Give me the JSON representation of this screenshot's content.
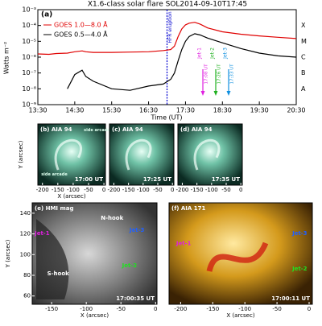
{
  "chart_data": {
    "type": "line",
    "title": "X1.6-class solar flare SOL2014-09-10T17:45",
    "panel_label": "(a)",
    "xlabel": "Time (UT)",
    "ylabel": "Watts m⁻²",
    "log_scale": true,
    "x": [
      13.5,
      13.8,
      14.0,
      14.3,
      14.5,
      14.7,
      14.8,
      15.0,
      15.5,
      16.0,
      16.5,
      16.9,
      17.1,
      17.2,
      17.3,
      17.4,
      17.5,
      17.6,
      17.75,
      17.9,
      18.1,
      18.5,
      19.0,
      19.5,
      20.0,
      20.5
    ],
    "series": [
      {
        "name": "GOES 1.0—8.0 Å",
        "color": "#e00000",
        "values": [
          1.6e-06,
          1.5e-06,
          1.7e-06,
          1.8e-06,
          2.2e-06,
          2.5e-06,
          2.2e-06,
          2e-06,
          2e-06,
          2.1e-06,
          2.2e-06,
          2.6e-06,
          3e-06,
          5e-06,
          2e-05,
          6e-05,
          0.00011,
          0.00014,
          0.00016,
          0.00012,
          7e-05,
          4e-05,
          2.8e-05,
          2.2e-05,
          1.8e-05,
          1.5e-05
        ]
      },
      {
        "name": "GOES 0.5—4.0 Å",
        "color": "#000000",
        "values": [
          null,
          null,
          null,
          1e-08,
          8e-08,
          1.5e-07,
          6e-08,
          3e-08,
          1e-08,
          8e-09,
          1.5e-08,
          2e-08,
          4e-08,
          1e-07,
          6e-07,
          3e-06,
          1e-05,
          2e-05,
          3e-05,
          2.5e-05,
          1.6e-05,
          8e-06,
          3.5e-06,
          1.8e-06,
          1.2e-06,
          1e-06
        ]
      }
    ],
    "xlim": [
      13.5,
      20.5
    ],
    "xticks": [
      {
        "value": 13.5,
        "label": "13:30"
      },
      {
        "value": 14.5,
        "label": "14:30"
      },
      {
        "value": 15.5,
        "label": "15:30"
      },
      {
        "value": 16.5,
        "label": "16:30"
      },
      {
        "value": 17.5,
        "label": "17:30"
      },
      {
        "value": 18.5,
        "label": "18:30"
      },
      {
        "value": 19.5,
        "label": "19:30"
      },
      {
        "value": 20.5,
        "label": "20:30"
      }
    ],
    "ylim": [
      1e-09,
      0.001
    ],
    "yticks": [
      {
        "value": 1e-09,
        "label": "10⁻⁹"
      },
      {
        "value": 1e-08,
        "label": "10⁻⁸"
      },
      {
        "value": 1e-07,
        "label": "10⁻⁷"
      },
      {
        "value": 1e-06,
        "label": "10⁻⁶"
      },
      {
        "value": 1e-05,
        "label": "10⁻⁵"
      },
      {
        "value": 0.0001,
        "label": "10⁻⁴"
      },
      {
        "value": 0.001,
        "label": "10⁻³"
      }
    ],
    "class_labels": [
      {
        "value": 0.0001,
        "label": "X"
      },
      {
        "value": 1e-05,
        "label": "M"
      },
      {
        "value": 1e-06,
        "label": "C"
      },
      {
        "value": 1e-07,
        "label": "B"
      },
      {
        "value": 1e-08,
        "label": "A"
      }
    ],
    "eruption": {
      "x": 17.0,
      "label": "HFR eruption"
    },
    "jets": [
      {
        "name": "Jet-1",
        "time": "17:08 UT",
        "color": "#e020e0"
      },
      {
        "name": "Jet-2",
        "time": "17:26 UT",
        "color": "#20b020"
      },
      {
        "name": "Jet-3",
        "time": "17:33 UT",
        "color": "#1090e0"
      }
    ]
  },
  "panels": [
    {
      "label": "(b) AIA 94",
      "time": "17:00 UT",
      "notes": [
        "side arcade",
        "side arcade"
      ],
      "xlabel": "X (arcsec)",
      "ylabel": "Y (arcsec)",
      "xlim": [
        -215,
        5
      ],
      "xticks": [
        -200,
        -150,
        -100,
        -50,
        0
      ]
    },
    {
      "label": "(c) AIA 94",
      "time": "17:25 UT",
      "notes": [],
      "xlim": [
        -215,
        5
      ],
      "xticks": [
        -200,
        -150,
        -100,
        -50,
        0
      ]
    },
    {
      "label": "(d) AIA 94",
      "time": "17:35 UT",
      "notes": [],
      "xlim": [
        -215,
        5
      ],
      "xticks": [
        -200,
        -150,
        -100,
        -50,
        0
      ]
    },
    {
      "label": "(e) HMI mag",
      "time": "17:00:35 UT",
      "notes": [
        "N-hook",
        "S-hook",
        "Jet-1",
        "Jet-2",
        "Jet-3"
      ],
      "xlabel": "X (arcsec)",
      "ylabel": "Y (arcsec)",
      "xlim": [
        -178,
        2
      ],
      "xticks": [
        -150,
        -100,
        -50,
        0
      ],
      "ylim": [
        52,
        150
      ],
      "yticks": [
        60,
        80,
        100,
        120,
        140
      ]
    },
    {
      "label": "(f) AIA 171",
      "time": "17:00:11 UT",
      "notes": [
        "Jet-1",
        "Jet-2",
        "Jet-3"
      ],
      "xlabel": "X (arcsec)",
      "xlim": [
        -218,
        5
      ],
      "xticks": [
        -200,
        -150,
        -100,
        -50,
        0
      ]
    }
  ]
}
